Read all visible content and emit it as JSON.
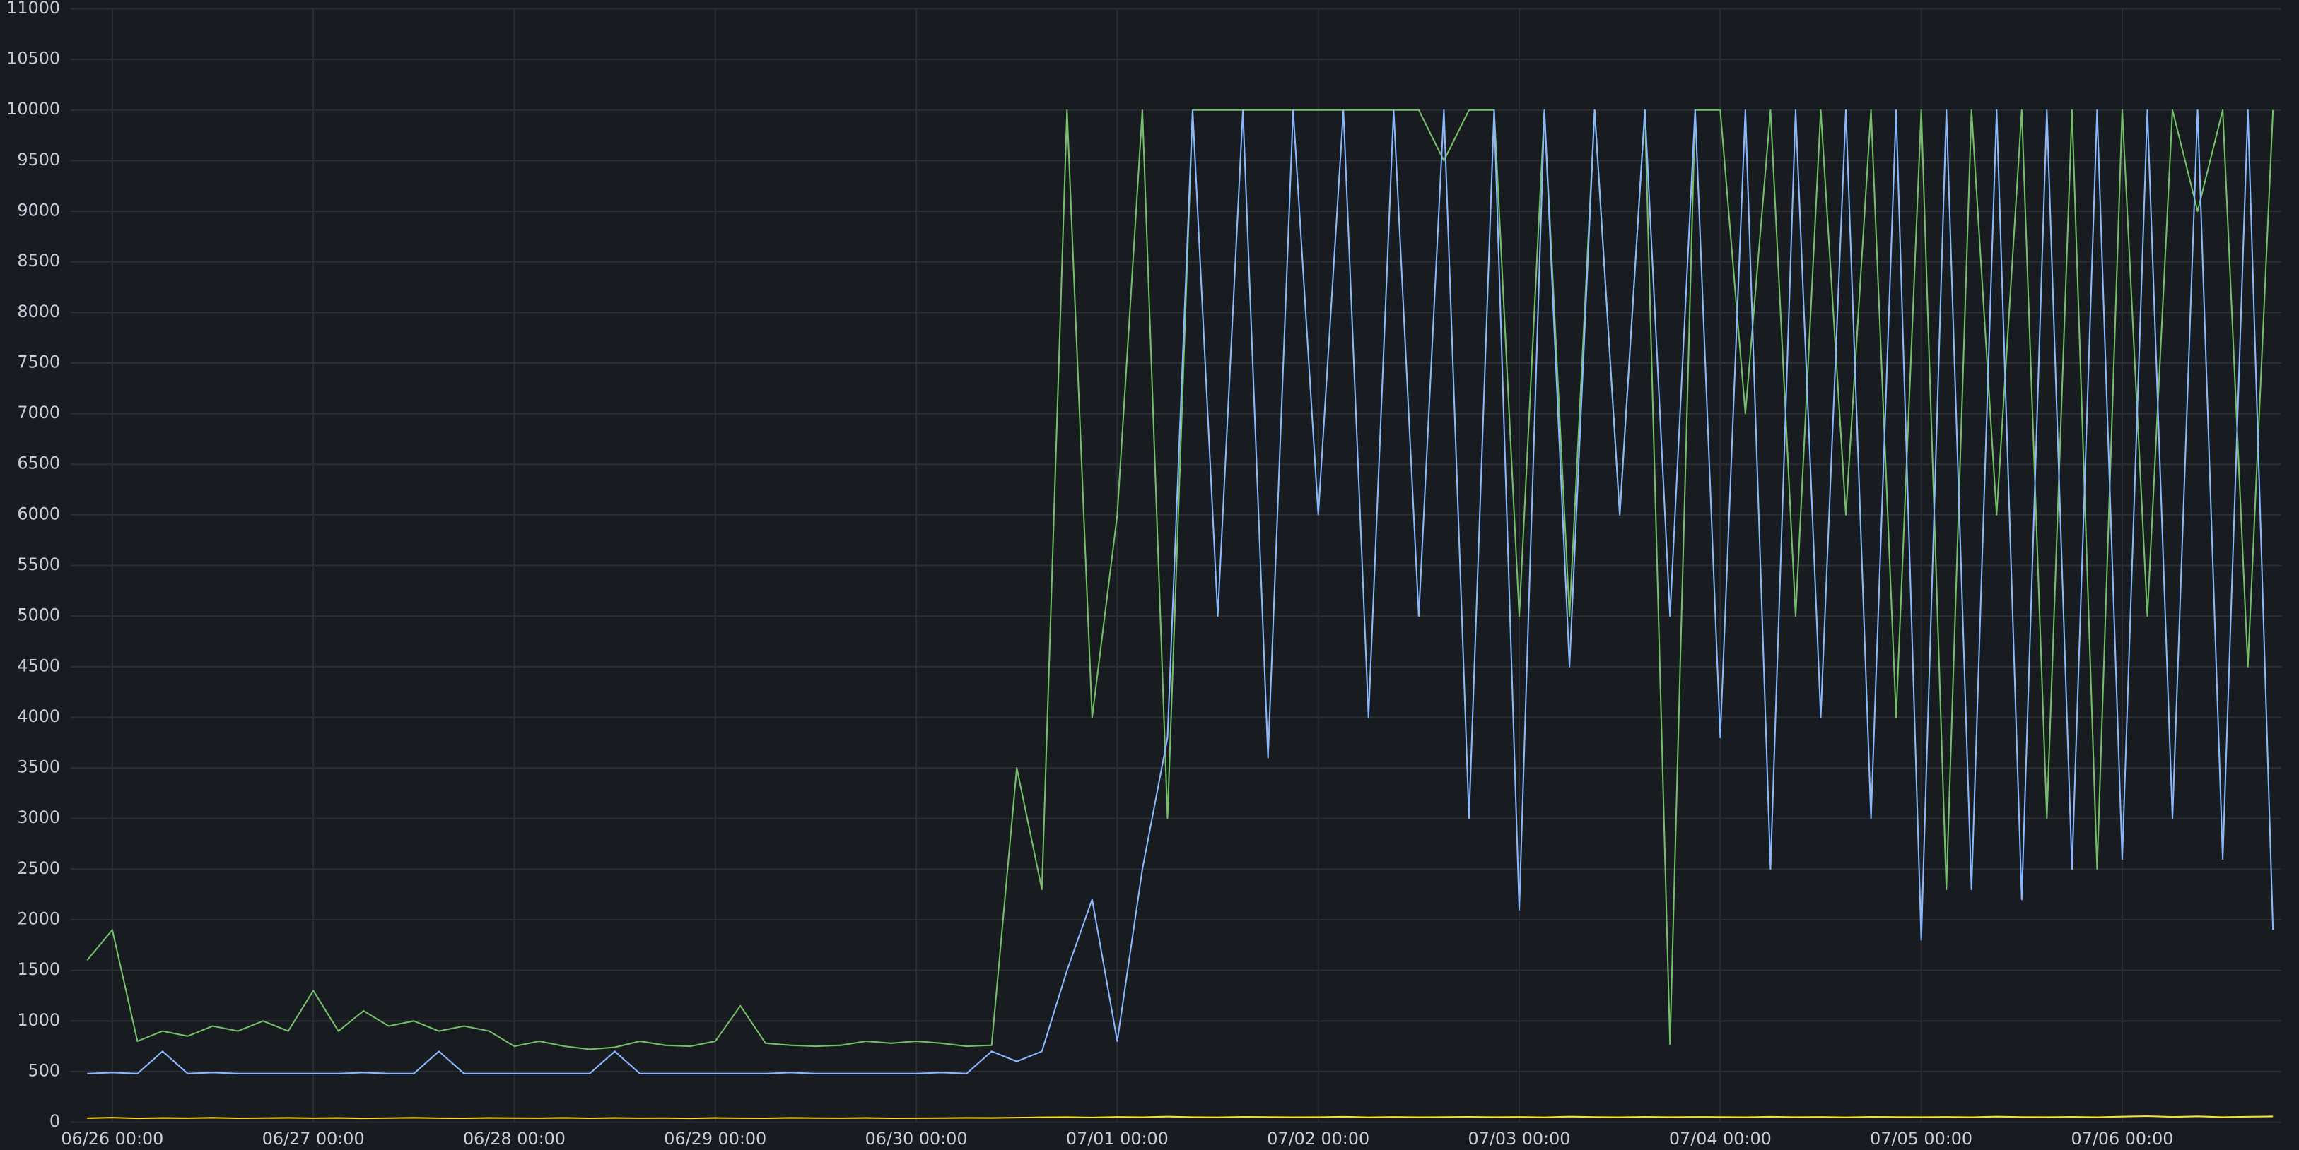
{
  "chart_data": {
    "type": "line",
    "x": [
      "06/25 21:00",
      "06/26 00:00",
      "06/26 03:00",
      "06/26 06:00",
      "06/26 09:00",
      "06/26 12:00",
      "06/26 15:00",
      "06/26 18:00",
      "06/26 21:00",
      "06/27 00:00",
      "06/27 03:00",
      "06/27 06:00",
      "06/27 09:00",
      "06/27 12:00",
      "06/27 15:00",
      "06/27 18:00",
      "06/27 21:00",
      "06/28 00:00",
      "06/28 03:00",
      "06/28 06:00",
      "06/28 09:00",
      "06/28 12:00",
      "06/28 15:00",
      "06/28 18:00",
      "06/28 21:00",
      "06/29 00:00",
      "06/29 03:00",
      "06/29 06:00",
      "06/29 09:00",
      "06/29 12:00",
      "06/29 15:00",
      "06/29 18:00",
      "06/29 21:00",
      "06/30 00:00",
      "06/30 03:00",
      "06/30 06:00",
      "06/30 09:00",
      "06/30 12:00",
      "06/30 15:00",
      "06/30 18:00",
      "06/30 21:00",
      "07/01 00:00",
      "07/01 03:00",
      "07/01 06:00",
      "07/01 09:00",
      "07/01 12:00",
      "07/01 15:00",
      "07/01 18:00",
      "07/01 21:00",
      "07/02 00:00",
      "07/02 03:00",
      "07/02 06:00",
      "07/02 09:00",
      "07/02 12:00",
      "07/02 15:00",
      "07/02 18:00",
      "07/02 21:00",
      "07/03 00:00",
      "07/03 03:00",
      "07/03 06:00",
      "07/03 09:00",
      "07/03 12:00",
      "07/03 15:00",
      "07/03 18:00",
      "07/03 21:00",
      "07/04 00:00",
      "07/04 03:00",
      "07/04 06:00",
      "07/04 09:00",
      "07/04 12:00",
      "07/04 15:00",
      "07/04 18:00",
      "07/04 21:00",
      "07/05 00:00",
      "07/05 03:00",
      "07/05 06:00",
      "07/05 09:00",
      "07/05 12:00",
      "07/05 15:00",
      "07/05 18:00",
      "07/05 21:00",
      "07/06 00:00",
      "07/06 03:00",
      "07/06 06:00",
      "07/06 09:00",
      "07/06 12:00",
      "07/06 15:00",
      "07/06 18:00"
    ],
    "series": [
      {
        "color": "#73bf69",
        "values": [
          1600,
          1900,
          800,
          900,
          850,
          950,
          900,
          1000,
          900,
          1300,
          900,
          1100,
          950,
          1000,
          900,
          950,
          900,
          750,
          800,
          750,
          720,
          740,
          800,
          760,
          750,
          800,
          1150,
          780,
          760,
          750,
          760,
          800,
          780,
          800,
          780,
          750,
          760,
          3500,
          2300,
          10000,
          4000,
          6000,
          10000,
          3000,
          10000,
          10000,
          10000,
          10000,
          10000,
          10000,
          10000,
          10000,
          10000,
          10000,
          9500,
          10000,
          10000,
          5000,
          10000,
          5000,
          10000,
          6000,
          10000,
          770,
          10000,
          10000,
          7000,
          10000,
          5000,
          10000,
          6000,
          10000,
          4000,
          10000,
          2300,
          10000,
          6000,
          10000,
          3000,
          10000,
          2500,
          10000,
          5000,
          10000,
          9000,
          10000,
          4500,
          10000
        ]
      },
      {
        "color": "#8ab8ff",
        "values": [
          480,
          490,
          480,
          700,
          480,
          490,
          480,
          480,
          480,
          480,
          480,
          490,
          480,
          480,
          700,
          480,
          480,
          480,
          480,
          480,
          480,
          700,
          480,
          480,
          480,
          480,
          480,
          480,
          490,
          480,
          480,
          480,
          480,
          480,
          490,
          480,
          700,
          600,
          700,
          1500,
          2200,
          800,
          2500,
          3800,
          10000,
          5000,
          10000,
          3600,
          10000,
          6000,
          10000,
          4000,
          10000,
          5000,
          10000,
          3000,
          10000,
          2100,
          10000,
          4500,
          10000,
          6000,
          10000,
          5000,
          10000,
          3800,
          10000,
          2500,
          10000,
          4000,
          10000,
          3000,
          10000,
          1800,
          10000,
          2300,
          10000,
          2200,
          10000,
          2500,
          10000,
          2600,
          10000,
          3000,
          10000,
          2600,
          10000,
          1900
        ]
      },
      {
        "color": "#fade2a",
        "values": [
          40,
          45,
          38,
          42,
          40,
          44,
          39,
          41,
          43,
          40,
          42,
          38,
          41,
          44,
          40,
          39,
          42,
          41,
          40,
          43,
          39,
          42,
          40,
          41,
          38,
          42,
          40,
          39,
          43,
          41,
          40,
          42,
          39,
          40,
          41,
          43,
          42,
          45,
          48,
          50,
          47,
          52,
          49,
          55,
          50,
          48,
          53,
          51,
          49,
          50,
          54,
          48,
          52,
          49,
          51,
          53,
          50,
          52,
          48,
          55,
          51,
          49,
          53,
          50,
          52,
          51,
          49,
          54,
          50,
          52,
          48,
          53,
          51,
          50,
          52,
          49,
          55,
          51,
          50,
          53,
          49,
          55,
          60,
          52,
          58,
          50,
          54,
          57
        ]
      }
    ],
    "xlim": [
      "06/25 19:00",
      "07/06 19:00"
    ],
    "xticks": [
      "06/26 00:00",
      "06/27 00:00",
      "06/28 00:00",
      "06/29 00:00",
      "06/30 00:00",
      "07/01 00:00",
      "07/02 00:00",
      "07/03 00:00",
      "07/04 00:00",
      "07/05 00:00",
      "07/06 00:00"
    ],
    "ylim": [
      0,
      11000
    ],
    "yticks": [
      0,
      500,
      1000,
      1500,
      2000,
      2500,
      3000,
      3500,
      4000,
      4500,
      5000,
      5500,
      6000,
      6500,
      7000,
      7500,
      8000,
      8500,
      9000,
      9500,
      10000,
      10500,
      11000
    ],
    "grid": true
  }
}
